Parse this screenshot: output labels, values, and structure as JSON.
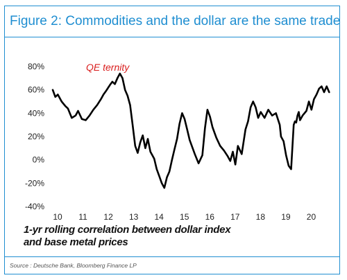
{
  "figure": {
    "title": "Figure 2: Commodities and the dollar are the same trade",
    "source": "Source : Deutsche Bank, Bloomberg Finance LP"
  },
  "chart_data": {
    "type": "line",
    "title": "Figure 2: Commodities and the dollar are the same trade",
    "caption": [
      "1-yr rolling correlation between dollar index",
      "and base metal prices"
    ],
    "annotation": "QE ternity",
    "x_ticks": [
      "10",
      "11",
      "12",
      "13",
      "14",
      "15",
      "16",
      "17",
      "18",
      "19",
      "20"
    ],
    "y_ticks": [
      "80%",
      "60%",
      "40%",
      "20%",
      "0%",
      "-20%",
      "-40%"
    ],
    "y_tick_values": [
      80,
      60,
      40,
      20,
      0,
      -20,
      -40
    ],
    "xlim": [
      2010,
      2021
    ],
    "ylim": [
      -40,
      80
    ],
    "grid": false,
    "line_color": "#000000",
    "series": [
      {
        "x": [
          2010.0,
          2010.1,
          2010.2,
          2010.35,
          2010.5,
          2010.6,
          2010.75,
          2010.9,
          2011.0,
          2011.15,
          2011.3,
          2011.45,
          2011.6,
          2011.75,
          2011.9,
          2012.0,
          2012.1,
          2012.25,
          2012.35,
          2012.45,
          2012.55,
          2012.65,
          2012.75,
          2012.85,
          2012.95,
          2013.05,
          2013.15,
          2013.25,
          2013.35,
          2013.45,
          2013.55,
          2013.65,
          2013.75,
          2013.85,
          2014.0,
          2014.1,
          2014.2,
          2014.3,
          2014.4,
          2014.5,
          2014.6,
          2014.7,
          2014.8,
          2014.9,
          2015.0,
          2015.1,
          2015.2,
          2015.3,
          2015.4,
          2015.5,
          2015.6,
          2015.75,
          2015.9,
          2016.0,
          2016.1,
          2016.2,
          2016.3,
          2016.45,
          2016.6,
          2016.75,
          2016.9,
          2017.0,
          2017.1,
          2017.2,
          2017.3,
          2017.45,
          2017.6,
          2017.7,
          2017.8,
          2017.9,
          2018.0,
          2018.1,
          2018.2,
          2018.35,
          2018.5,
          2018.65,
          2018.8,
          2018.95,
          2019.0,
          2019.1,
          2019.2,
          2019.3,
          2019.4,
          2019.5,
          2019.55,
          2019.6,
          2019.65,
          2019.7,
          2019.75,
          2019.85,
          2020.0,
          2020.1,
          2020.2,
          2020.3,
          2020.4,
          2020.5,
          2020.6,
          2020.7,
          2020.8,
          2020.9
        ],
        "y": [
          60,
          54,
          56,
          50,
          46,
          44,
          36,
          38,
          42,
          35,
          34,
          38,
          43,
          47,
          52,
          56,
          59,
          64,
          67,
          65,
          70,
          74,
          70,
          60,
          55,
          47,
          30,
          12,
          6,
          15,
          21,
          10,
          18,
          7,
          1,
          -8,
          -14,
          -20,
          -24,
          -15,
          -10,
          0,
          9,
          18,
          31,
          40,
          35,
          26,
          17,
          11,
          5,
          -3,
          4,
          27,
          43,
          37,
          28,
          19,
          12,
          8,
          3,
          -1,
          7,
          -4,
          12,
          5,
          26,
          33,
          45,
          50,
          45,
          36,
          41,
          36,
          43,
          38,
          40,
          30,
          20,
          16,
          4,
          -5,
          -8,
          30,
          33,
          32,
          38,
          41,
          34,
          38,
          42,
          50,
          43,
          52,
          56,
          61,
          63,
          58,
          63,
          58
        ]
      }
    ]
  }
}
